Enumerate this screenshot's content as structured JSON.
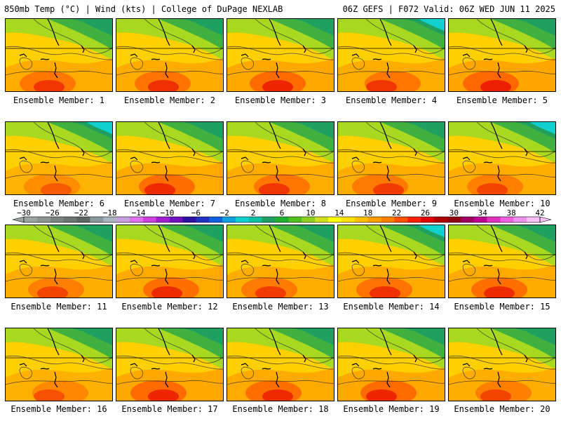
{
  "header": {
    "left": "850mb Temp (°C) | Wind (kts) | College of DuPage NEXLAB",
    "right": "06Z GEFS | F072 Valid: 06Z WED JUN 11 2025"
  },
  "members": [
    {
      "label": "Ensemble Member: 1",
      "heat": 0.7
    },
    {
      "label": "Ensemble Member: 2",
      "heat": 0.75
    },
    {
      "label": "Ensemble Member: 3",
      "heat": 0.85
    },
    {
      "label": "Ensemble Member: 4",
      "heat": 0.7
    },
    {
      "label": "Ensemble Member: 5",
      "heat": 0.9
    },
    {
      "label": "Ensemble Member: 6",
      "heat": 0.45
    },
    {
      "label": "Ensemble Member: 7",
      "heat": 0.8
    },
    {
      "label": "Ensemble Member: 8",
      "heat": 0.7
    },
    {
      "label": "Ensemble Member: 9",
      "heat": 0.65
    },
    {
      "label": "Ensemble Member: 10",
      "heat": 0.6
    },
    {
      "label": "Ensemble Member: 11",
      "heat": 0.6
    },
    {
      "label": "Ensemble Member: 12",
      "heat": 0.8
    },
    {
      "label": "Ensemble Member: 13",
      "heat": 0.65
    },
    {
      "label": "Ensemble Member: 14",
      "heat": 0.75
    },
    {
      "label": "Ensemble Member: 15",
      "heat": 0.8
    },
    {
      "label": "Ensemble Member: 16",
      "heat": 0.5
    },
    {
      "label": "Ensemble Member: 17",
      "heat": 0.85
    },
    {
      "label": "Ensemble Member: 18",
      "heat": 0.8
    },
    {
      "label": "Ensemble Member: 19",
      "heat": 0.85
    },
    {
      "label": "Ensemble Member: 20",
      "heat": 0.6
    }
  ],
  "colorbar": {
    "ticks": [
      "−30",
      "−26",
      "−22",
      "−18",
      "−14",
      "−10",
      "−6",
      "−2",
      "2",
      "6",
      "10",
      "14",
      "18",
      "22",
      "26",
      "30",
      "34",
      "38",
      "42"
    ],
    "colors": [
      "#9aa6a0",
      "#8a968f",
      "#7a8680",
      "#6a7670",
      "#5a6660",
      "#8a9aa0",
      "#aab4c0",
      "#c8a0e0",
      "#e070f0",
      "#d040e0",
      "#a020d0",
      "#7010c0",
      "#3010a0",
      "#2030c0",
      "#1060e0",
      "#10a0e0",
      "#10d0d0",
      "#10c0a0",
      "#20a060",
      "#20b030",
      "#50c020",
      "#90d020",
      "#d0e020",
      "#ffff00",
      "#ffe000",
      "#ffc000",
      "#ffa000",
      "#ff8000",
      "#ff5000",
      "#ff2000",
      "#e00000",
      "#b00000",
      "#900010",
      "#a00060",
      "#c00090",
      "#e030c0",
      "#f060e0",
      "#f090f0",
      "#f8c0f8"
    ]
  }
}
